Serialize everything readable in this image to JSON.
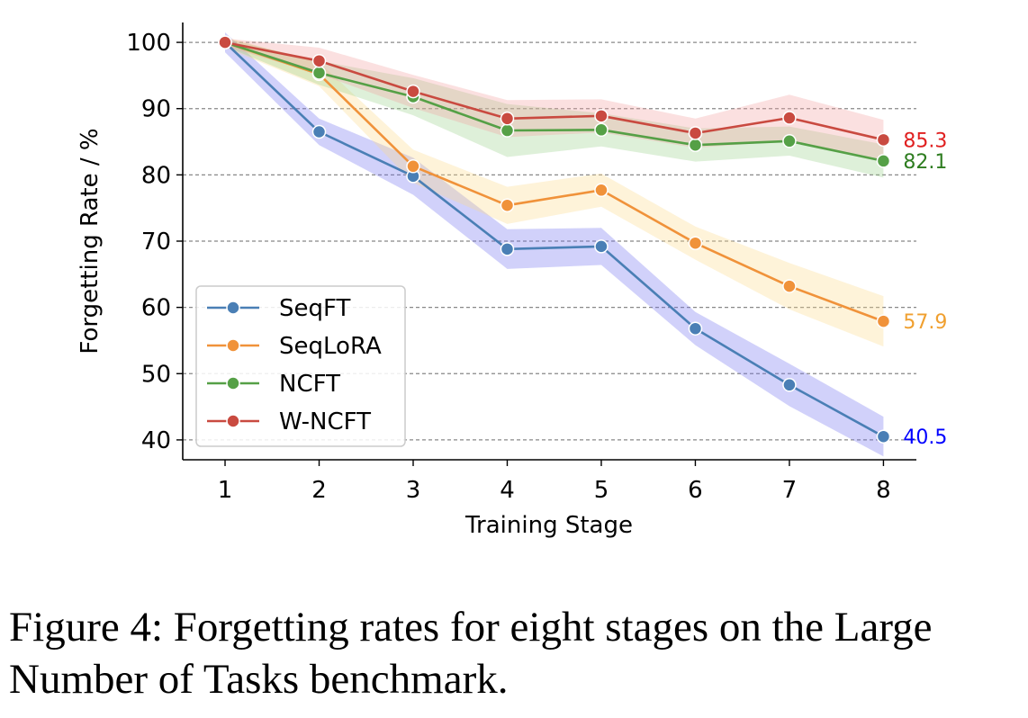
{
  "chart_data": {
    "type": "line",
    "xlabel": "Training Stage",
    "ylabel": "Forgetting Rate / %",
    "x": [
      1,
      2,
      3,
      4,
      5,
      6,
      7,
      8
    ],
    "xlim": [
      0.55,
      8.35
    ],
    "ylim": [
      37,
      103
    ],
    "yticks": [
      40,
      50,
      60,
      70,
      80,
      90,
      100
    ],
    "grid": "horizontal dashed",
    "legend_placement": "lower-left",
    "series": [
      {
        "name": "SeqFT",
        "color": "#4a7fb5",
        "band_color": "#6f6ff0",
        "values": [
          100,
          86.5,
          79.8,
          68.8,
          69.2,
          56.8,
          48.3,
          40.5
        ],
        "band": [
          1.5,
          2.0,
          2.8,
          3.0,
          2.8,
          2.5,
          3.2,
          3.0
        ],
        "end_label": "40.5",
        "end_label_color": "#0000ff"
      },
      {
        "name": "SeqLoRA",
        "color": "#f0923a",
        "band_color": "#fcd98a",
        "values": [
          100,
          95.2,
          81.3,
          75.4,
          77.7,
          69.7,
          63.2,
          57.9
        ],
        "band": [
          0.8,
          1.8,
          2.5,
          2.8,
          2.5,
          2.5,
          3.5,
          3.8
        ],
        "end_label": "57.9",
        "end_label_color": "#f0a030"
      },
      {
        "name": "NCFT",
        "color": "#55a046",
        "band_color": "#97d08a",
        "values": [
          100,
          95.4,
          91.8,
          86.7,
          86.8,
          84.5,
          85.1,
          82.1
        ],
        "band": [
          0.6,
          1.8,
          2.8,
          4.0,
          2.5,
          2.5,
          2.2,
          2.5
        ],
        "end_label": "82.1",
        "end_label_color": "#2e7d20"
      },
      {
        "name": "W-NCFT",
        "color": "#c94a40",
        "band_color": "#f2a0a0",
        "values": [
          100,
          97.2,
          92.6,
          88.5,
          88.9,
          86.3,
          88.6,
          85.3
        ],
        "band": [
          0.6,
          2.0,
          2.5,
          2.8,
          2.5,
          2.2,
          3.5,
          3.0
        ],
        "end_label": "85.3",
        "end_label_color": "#e02020"
      }
    ]
  },
  "caption": "Figure 4: Forgetting rates for eight stages on the Large\nNumber of Tasks benchmark."
}
